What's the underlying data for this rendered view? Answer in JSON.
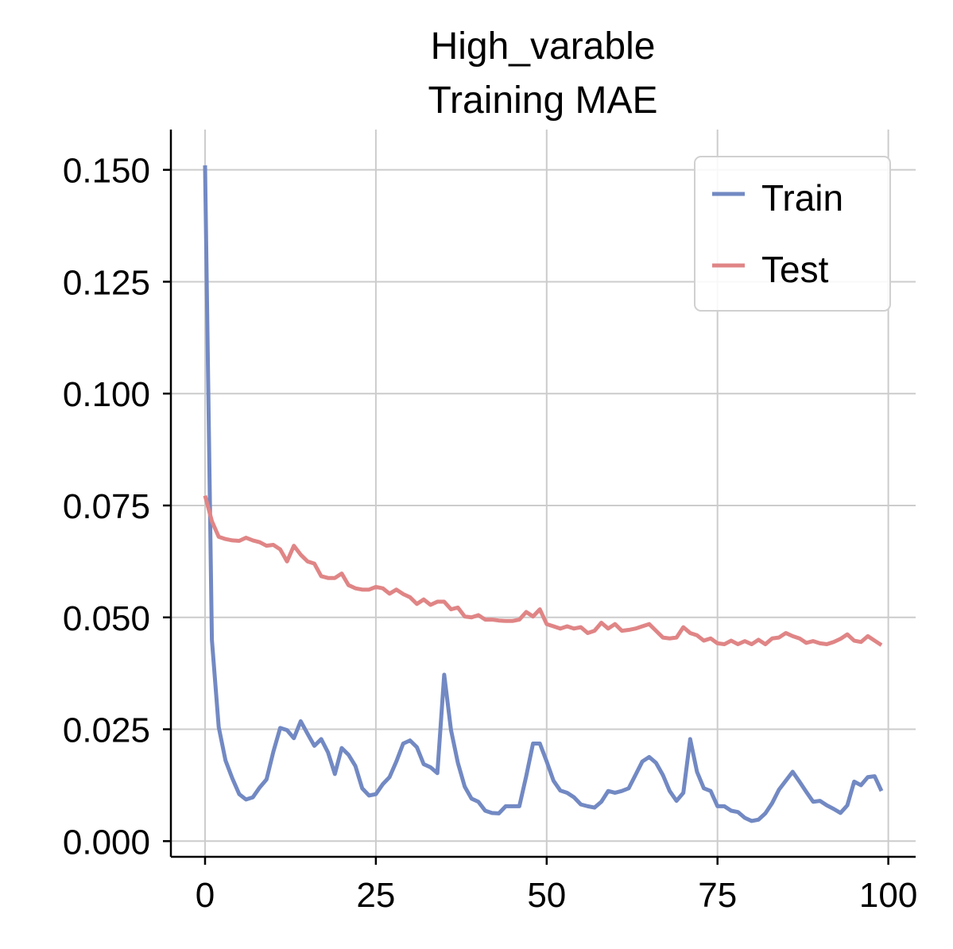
{
  "chart_data": {
    "type": "line",
    "title_line1": "High_varable",
    "title_line2": "Training MAE",
    "xlabel": "",
    "ylabel": "",
    "xlim": [
      -5,
      104
    ],
    "ylim": [
      -0.0035,
      0.159
    ],
    "xticks": [
      0,
      25,
      50,
      75,
      100
    ],
    "xtick_labels": [
      "0",
      "25",
      "50",
      "75",
      "100"
    ],
    "yticks": [
      0.0,
      0.025,
      0.05,
      0.075,
      0.1,
      0.125,
      0.15
    ],
    "ytick_labels": [
      "0.000",
      "0.025",
      "0.050",
      "0.075",
      "0.100",
      "0.125",
      "0.150"
    ],
    "grid": true,
    "legend_position": "top-right",
    "x": [
      0,
      1,
      2,
      3,
      4,
      5,
      6,
      7,
      8,
      9,
      10,
      11,
      12,
      13,
      14,
      15,
      16,
      17,
      18,
      19,
      20,
      21,
      22,
      23,
      24,
      25,
      26,
      27,
      28,
      29,
      30,
      31,
      32,
      33,
      34,
      35,
      36,
      37,
      38,
      39,
      40,
      41,
      42,
      43,
      44,
      45,
      46,
      47,
      48,
      49,
      50,
      51,
      52,
      53,
      54,
      55,
      56,
      57,
      58,
      59,
      60,
      61,
      62,
      63,
      64,
      65,
      66,
      67,
      68,
      69,
      70,
      71,
      72,
      73,
      74,
      75,
      76,
      77,
      78,
      79,
      80,
      81,
      82,
      83,
      84,
      85,
      86,
      87,
      88,
      89,
      90,
      91,
      92,
      93,
      94,
      95,
      96,
      97,
      98,
      99
    ],
    "series": [
      {
        "name": "Train",
        "color": "#7289c3",
        "values": [
          0.151,
          0.045,
          0.0255,
          0.018,
          0.014,
          0.0105,
          0.0093,
          0.0098,
          0.012,
          0.0138,
          0.02,
          0.0253,
          0.0248,
          0.023,
          0.0268,
          0.024,
          0.0213,
          0.0228,
          0.0198,
          0.015,
          0.0208,
          0.0193,
          0.0168,
          0.0118,
          0.0102,
          0.0105,
          0.0127,
          0.0143,
          0.0178,
          0.0218,
          0.0225,
          0.021,
          0.0172,
          0.0165,
          0.0152,
          0.0372,
          0.0248,
          0.0175,
          0.0122,
          0.0095,
          0.0088,
          0.0068,
          0.0063,
          0.0062,
          0.0078,
          0.0078,
          0.0078,
          0.0145,
          0.0218,
          0.0218,
          0.0178,
          0.0135,
          0.0113,
          0.0108,
          0.0098,
          0.0082,
          0.0078,
          0.0075,
          0.0088,
          0.0112,
          0.0108,
          0.0112,
          0.0118,
          0.0148,
          0.0178,
          0.0188,
          0.0175,
          0.0148,
          0.0112,
          0.009,
          0.0108,
          0.0228,
          0.0155,
          0.0118,
          0.0112,
          0.0078,
          0.0078,
          0.0068,
          0.0065,
          0.0052,
          0.0045,
          0.0048,
          0.0062,
          0.0085,
          0.0115,
          0.0135,
          0.0155,
          0.0133,
          0.011,
          0.0088,
          0.009,
          0.008,
          0.0072,
          0.0063,
          0.008,
          0.0133,
          0.0125,
          0.0143,
          0.0145,
          0.0112
        ]
      },
      {
        "name": "Test",
        "color": "#e08586",
        "values": [
          0.0772,
          0.0715,
          0.068,
          0.0675,
          0.0672,
          0.0671,
          0.0678,
          0.0672,
          0.0668,
          0.066,
          0.0662,
          0.0652,
          0.0625,
          0.066,
          0.064,
          0.0625,
          0.062,
          0.0592,
          0.0588,
          0.0588,
          0.0598,
          0.0572,
          0.0565,
          0.0562,
          0.0562,
          0.0568,
          0.0565,
          0.0553,
          0.0562,
          0.0552,
          0.0545,
          0.053,
          0.054,
          0.0528,
          0.0535,
          0.0535,
          0.0518,
          0.0522,
          0.0502,
          0.05,
          0.0505,
          0.0495,
          0.0495,
          0.0493,
          0.0492,
          0.0492,
          0.0495,
          0.0512,
          0.0502,
          0.0518,
          0.0485,
          0.048,
          0.0475,
          0.048,
          0.0475,
          0.0478,
          0.0465,
          0.047,
          0.0488,
          0.0475,
          0.0485,
          0.047,
          0.0472,
          0.0475,
          0.048,
          0.0485,
          0.047,
          0.0455,
          0.0453,
          0.0455,
          0.0478,
          0.0465,
          0.046,
          0.0448,
          0.0453,
          0.0442,
          0.044,
          0.0448,
          0.044,
          0.0447,
          0.044,
          0.045,
          0.044,
          0.0453,
          0.0455,
          0.0465,
          0.0458,
          0.0453,
          0.0443,
          0.0447,
          0.0442,
          0.044,
          0.0445,
          0.0452,
          0.0462,
          0.0448,
          0.0445,
          0.0458,
          0.0448,
          0.0438
        ]
      }
    ]
  }
}
